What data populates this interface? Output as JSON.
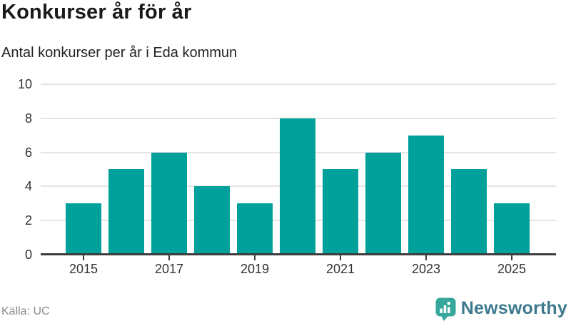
{
  "header": {
    "title": "Konkurser år för år",
    "subtitle": "Antal konkurser per år i Eda kommun"
  },
  "chart_data": {
    "type": "bar",
    "categories": [
      "2015",
      "2016",
      "2017",
      "2018",
      "2019",
      "2020",
      "2021",
      "2022",
      "2023",
      "2024",
      "2025"
    ],
    "values": [
      3,
      5,
      6,
      4,
      3,
      8,
      5,
      6,
      7,
      5,
      3
    ],
    "title": "Konkurser år för år",
    "subtitle": "Antal konkurser per år i Eda kommun",
    "xlabel": "",
    "ylabel": "",
    "ylim": [
      0,
      10
    ],
    "yticks": [
      0,
      2,
      4,
      6,
      8,
      10
    ],
    "xtick_labels": [
      "2015",
      "2017",
      "2019",
      "2021",
      "2023",
      "2025"
    ],
    "grid": true,
    "legend": "none",
    "bar_color": "#00a19a"
  },
  "footer": {
    "source": "Källa: UC",
    "brand": "Newsworthy",
    "brand_text_color": "#3d7a8d",
    "brand_icon_color": "#35a79c"
  }
}
